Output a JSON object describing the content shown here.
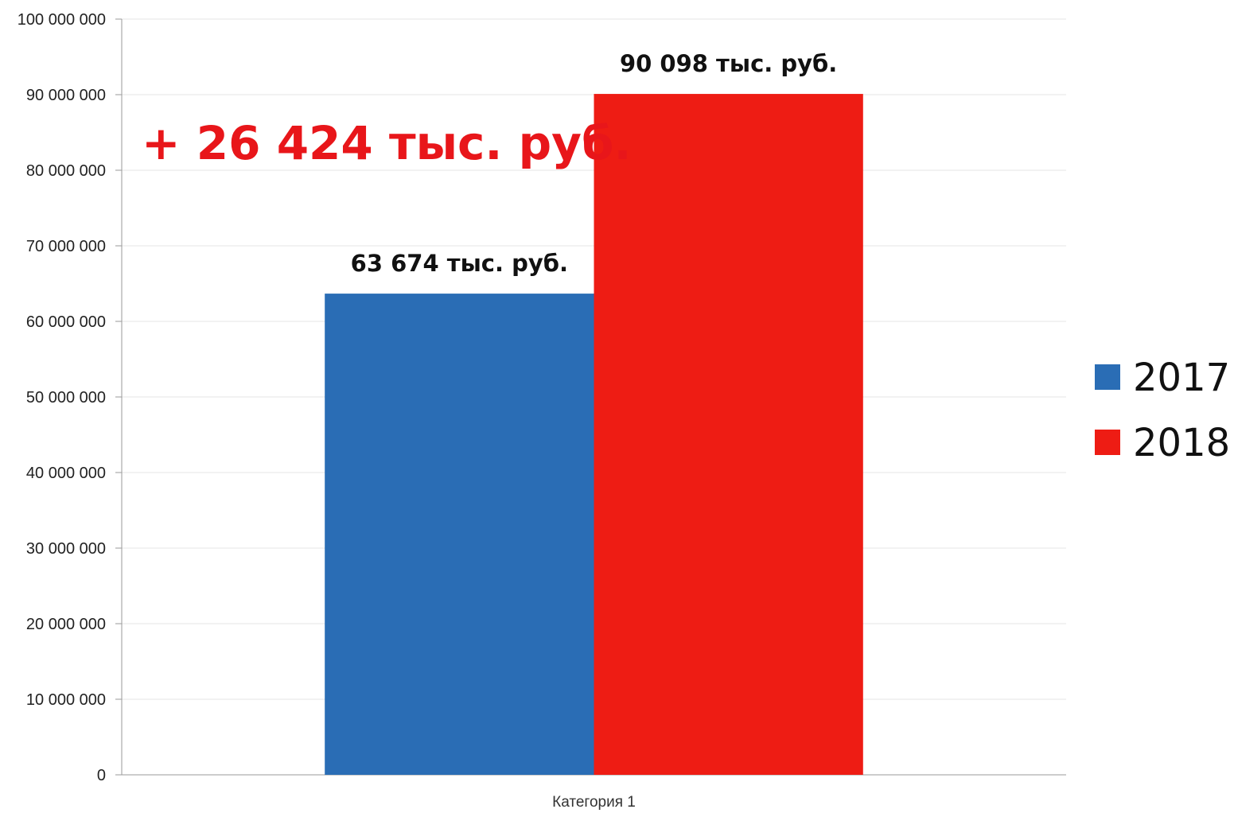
{
  "chart_data": {
    "type": "bar",
    "categories": [
      "Категория 1"
    ],
    "series": [
      {
        "name": "2017",
        "values": [
          63674000
        ],
        "color": "#2a6db5",
        "data_label": "63 674 тыс. руб."
      },
      {
        "name": "2018",
        "values": [
          90098000
        ],
        "color": "#ee1c14",
        "data_label": "90 098 тыс. руб."
      }
    ],
    "ylim": [
      0,
      100000000
    ],
    "yticks": [
      0,
      10000000,
      20000000,
      30000000,
      40000000,
      50000000,
      60000000,
      70000000,
      80000000,
      90000000,
      100000000
    ],
    "ytick_labels": [
      "0",
      "10 000 000",
      "20 000 000",
      "30 000 000",
      "40 000 000",
      "50 000 000",
      "60 000 000",
      "70 000 000",
      "80 000 000",
      "90 000 000",
      "100 000 000"
    ],
    "grid": true,
    "legend_position": "right",
    "annotation": {
      "text": "+ 26 424 тыс. руб.",
      "color": "#e8161a"
    },
    "title": "",
    "xlabel": "",
    "ylabel": ""
  }
}
